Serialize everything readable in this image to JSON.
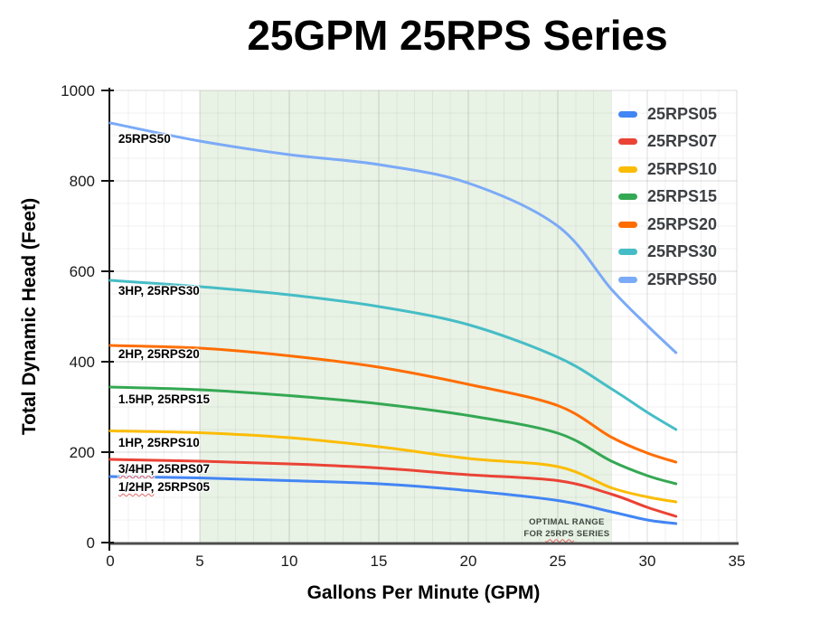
{
  "chart_data": {
    "type": "line",
    "title": "25GPM 25RPS Series",
    "xlabel": "Gallons Per Minute (GPM)",
    "ylabel": "Total Dynamic Head (Feet)",
    "xlim": [
      0,
      35
    ],
    "ylim": [
      0,
      1000
    ],
    "x_ticks": [
      0,
      5,
      10,
      15,
      20,
      25,
      30,
      35
    ],
    "y_ticks": [
      0,
      200,
      400,
      600,
      800,
      1000
    ],
    "x_minor_step": 1,
    "y_minor_step": 50,
    "grid": true,
    "legend_position": "inside-top-right",
    "x": [
      0,
      5,
      10,
      15,
      20,
      25,
      28,
      30,
      31.6
    ],
    "series": [
      {
        "name": "25RPS05",
        "color": "#4285F4",
        "values": [
          146,
          143,
          137,
          130,
          115,
          93,
          68,
          50,
          42
        ]
      },
      {
        "name": "25RPS07",
        "color": "#EA4335",
        "values": [
          184,
          180,
          174,
          165,
          150,
          137,
          107,
          78,
          58
        ]
      },
      {
        "name": "25RPS10",
        "color": "#FBBC04",
        "values": [
          247,
          243,
          232,
          212,
          186,
          168,
          121,
          101,
          90
        ]
      },
      {
        "name": "25RPS15",
        "color": "#34A853",
        "values": [
          344,
          338,
          325,
          307,
          281,
          242,
          180,
          148,
          130
        ]
      },
      {
        "name": "25RPS20",
        "color": "#FF6D01",
        "values": [
          436,
          430,
          413,
          388,
          350,
          303,
          233,
          198,
          178
        ]
      },
      {
        "name": "25RPS30",
        "color": "#46BDC6",
        "values": [
          580,
          566,
          548,
          522,
          482,
          410,
          340,
          288,
          250
        ]
      },
      {
        "name": "25RPS50",
        "color": "#7BAAF7",
        "values": [
          928,
          888,
          858,
          836,
          795,
          700,
          560,
          480,
          420
        ]
      }
    ],
    "curve_labels": [
      {
        "text": "25RPS50",
        "x": 0.45,
        "y_top": 906
      },
      {
        "text": "3HP, 25RPS30",
        "x": 0.45,
        "y_top": 570
      },
      {
        "text": "2HP, 25RPS20",
        "x": 0.45,
        "y_top": 430
      },
      {
        "text": "1.5HP, 25RPS15",
        "x": 0.45,
        "y_top": 330
      },
      {
        "text": "1HP, 25RPS10",
        "x": 0.45,
        "y_top": 234
      },
      {
        "text": "3/4HP, 25RPS07",
        "x": 0.45,
        "y_top": 176,
        "squiggle": "3/4HP,"
      },
      {
        "text": "1/2HP, 25RPS05",
        "x": 0.45,
        "y_top": 136,
        "squiggle": "1/2HP,"
      }
    ],
    "optimal_band": {
      "x_start": 5,
      "x_end": 28,
      "fill": "#e8f2e5",
      "label_line1": "OPTIMAL RANGE",
      "label_line2": "FOR 25RPS SERIES",
      "label_center_x": 25.5,
      "label_top_y": 58,
      "squiggle": "25RPS"
    },
    "colors": {
      "axis_x": "#4d4d4d",
      "axis_y": "#111111",
      "grid_major": "rgba(0,0,0,0.14)",
      "grid_minor": "rgba(0,0,0,0.05)",
      "tick_label": "#1a1a1a",
      "legend_text": "#3c4043",
      "note_text": "#424a40"
    }
  }
}
